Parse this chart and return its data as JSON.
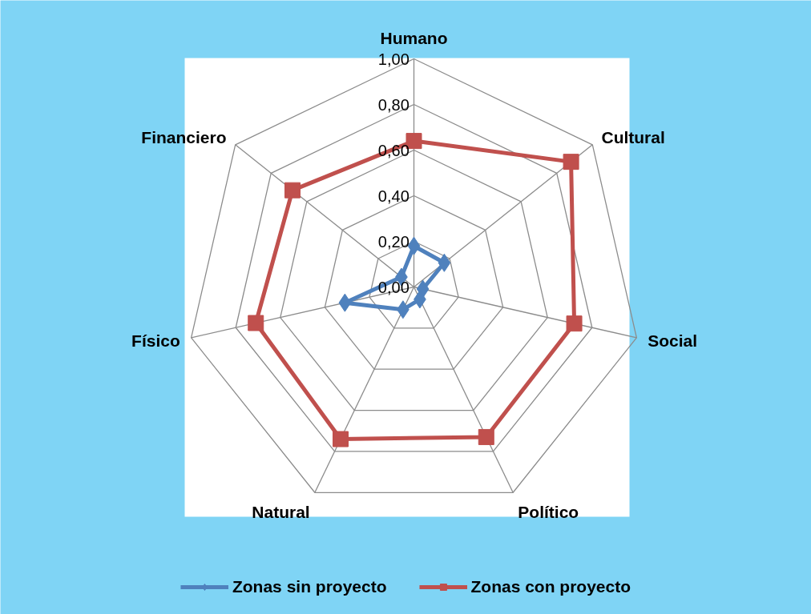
{
  "chart_data": {
    "type": "radar",
    "categories": [
      "Humano",
      "Cultural",
      "Social",
      "Político",
      "Natural",
      "Físico",
      "Financiero"
    ],
    "series": [
      {
        "name": "Zonas sin proyecto",
        "color": "#4f81bd",
        "marker": "diamond",
        "values": [
          0.18,
          0.17,
          0.04,
          0.06,
          0.11,
          0.31,
          0.07
        ]
      },
      {
        "name": "Zonas con proyecto",
        "color": "#c0504d",
        "marker": "square",
        "values": [
          0.64,
          0.88,
          0.72,
          0.73,
          0.74,
          0.71,
          0.68
        ]
      }
    ],
    "ylim": [
      0,
      1
    ],
    "yticks": [
      {
        "value": 0,
        "label": "0,00"
      },
      {
        "value": 0.2,
        "label": "0,20"
      },
      {
        "value": 0.4,
        "label": "0,40"
      },
      {
        "value": 0.6,
        "label": "0,60"
      },
      {
        "value": 0.8,
        "label": "0,80"
      },
      {
        "value": 1,
        "label": "1,00"
      }
    ],
    "grid": true,
    "legend": "bottom"
  }
}
